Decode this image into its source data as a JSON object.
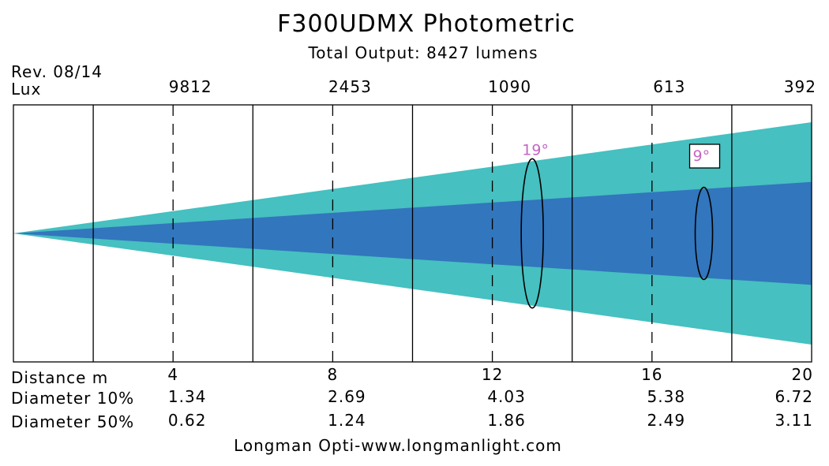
{
  "chart_data": {
    "type": "beam-diagram",
    "title": "F300UDMX Photometric",
    "subtitle": "Total Output: 8427 lumens",
    "revision": "Rev. 08/14",
    "lux_label": "Lux",
    "distance_label": "Distance m",
    "diameter10_label": "Diameter 10%",
    "diameter50_label": "Diameter 50%",
    "footer": "Longman Opti-www.longmanlight.com",
    "distances": [
      "4",
      "8",
      "12",
      "16",
      "20"
    ],
    "lux": [
      "9812",
      "2453",
      "1090",
      "613",
      "392"
    ],
    "diameter_10": [
      "1.34",
      "2.69",
      "4.03",
      "5.38",
      "6.72"
    ],
    "diameter_50": [
      "0.62",
      "1.24",
      "1.86",
      "2.49",
      "3.11"
    ],
    "distance_range_m": [
      0,
      20
    ],
    "field_angle_label": "19°",
    "beam_angle_label": "9°",
    "colors": {
      "field": "#46c0c0",
      "beam": "#3276bd",
      "angle_label": "#c466c4",
      "lines": "#000000"
    }
  }
}
